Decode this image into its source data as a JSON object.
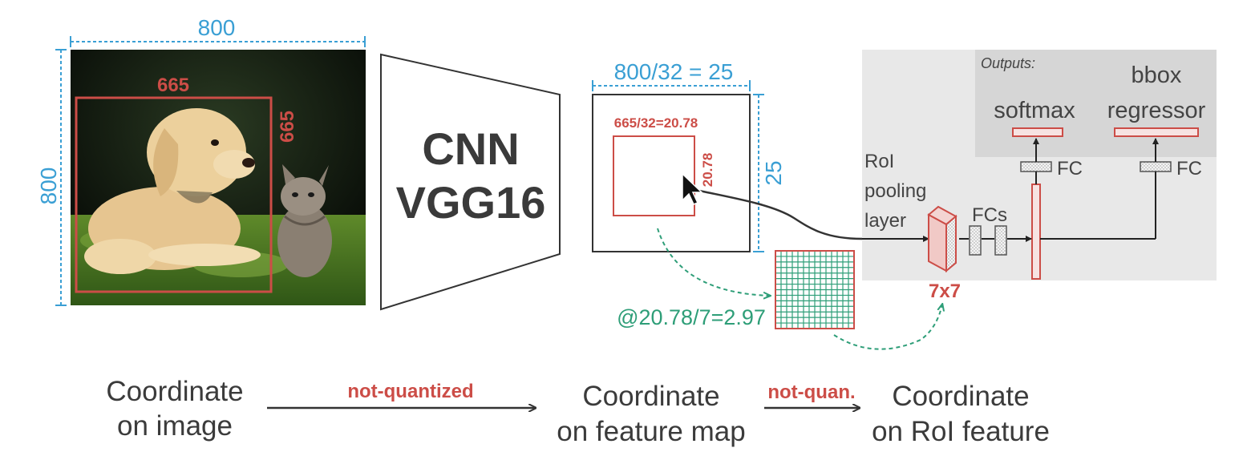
{
  "image_panel": {
    "width_label": "800",
    "height_label": "800",
    "roi_width_label": "665",
    "roi_height_label": "665"
  },
  "cnn": {
    "line1": "CNN",
    "line2": "VGG16"
  },
  "feature_map": {
    "width_label": "800/32 = 25",
    "height_label": "25",
    "roi_width_label": "665/32=20.78",
    "roi_height_label": "20.78"
  },
  "grid": {
    "rows": 7,
    "cols": 7,
    "cell_label": "@20.78/7=2.97"
  },
  "network": {
    "outputs_label": "Outputs:",
    "softmax_label": "softmax",
    "bbox_label_line1": "bbox",
    "bbox_label_line2": "regressor",
    "fc_label_1": "FC",
    "fc_label_2": "FC",
    "fcs_label": "FCs",
    "roi_line1": "RoI",
    "roi_line2": "pooling",
    "roi_line3": "layer",
    "pool_size_label": "7x7"
  },
  "bottom_flow": {
    "stage1_line1": "Coordinate",
    "stage1_line2": "on image",
    "arrow1_label": "not-quantized",
    "stage2_line1": "Coordinate",
    "stage2_line2": "on feature map",
    "arrow2_label": "not-quan.",
    "stage3_line1": "Coordinate",
    "stage3_line2": "on RoI feature"
  },
  "colors": {
    "blue": "#3a9fd4",
    "red": "#cc4d47",
    "green": "#2e9e78",
    "dark": "#333333",
    "panel_bg": "#e8e8e8",
    "outputs_bg": "#d6d6d6"
  },
  "icons": {
    "cursor": "mouse-pointer-icon"
  }
}
